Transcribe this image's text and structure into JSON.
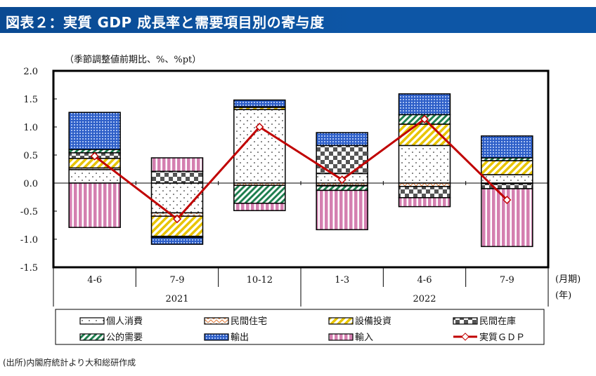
{
  "header": {
    "title": "図表２：実質 GDP 成長率と需要項目別の寄与度"
  },
  "source": "(出所)内閣府統計より大和総研作成",
  "colors": {
    "gdp": "#c00000",
    "consumption": "#ffffff",
    "housing": "#e07b39",
    "investment": "#e8c400",
    "inventory": "#555555",
    "public": "#1f7f4f",
    "exports": "#2e5fc8",
    "imports": "#d47fb0"
  },
  "chart_data": {
    "type": "bar",
    "title": "図表２：実質 GDP 成長率と需要項目別の寄与度",
    "unit_label": "（季節調整値前期比、%、%pt）",
    "x_unit_label": "(月期)",
    "year_unit_label": "(年)",
    "categories": [
      "4-6",
      "7-9",
      "10-12",
      "1-3",
      "4-6",
      "7-9"
    ],
    "years": [
      {
        "label": "2021",
        "span": 3
      },
      {
        "label": "2022",
        "span": 3
      }
    ],
    "ylim": [
      -1.5,
      2.0
    ],
    "yticks": [
      "2.0",
      "1.5",
      "1.0",
      "0.5",
      "0.0",
      "-0.5",
      "-1.0",
      "-1.5"
    ],
    "series": [
      {
        "name": "個人消費",
        "key": "consumption",
        "values": [
          0.24,
          -0.53,
          1.31,
          0.17,
          0.67,
          0.15
        ]
      },
      {
        "name": "民間住宅",
        "key": "housing",
        "values": [
          0.03,
          -0.06,
          -0.04,
          -0.04,
          -0.06,
          -0.01
        ]
      },
      {
        "name": "設備投資",
        "key": "investment",
        "values": [
          0.17,
          -0.36,
          0.04,
          -0.01,
          0.38,
          0.25
        ]
      },
      {
        "name": "民間在庫",
        "key": "inventory",
        "values": [
          0.1,
          0.21,
          0.01,
          0.5,
          -0.2,
          -0.09
        ]
      },
      {
        "name": "公的需要",
        "key": "public",
        "values": [
          0.06,
          -0.02,
          -0.32,
          -0.08,
          0.17,
          0.05
        ]
      },
      {
        "name": "輸出",
        "key": "exports",
        "values": [
          0.66,
          -0.12,
          0.12,
          0.23,
          0.37,
          0.39
        ]
      },
      {
        "name": "輸入",
        "key": "imports",
        "values": [
          -0.79,
          0.24,
          -0.13,
          -0.7,
          -0.16,
          -1.03
        ]
      }
    ],
    "line": {
      "name": "実質ＧＤＰ",
      "values": [
        0.48,
        -0.64,
        1.0,
        0.06,
        1.14,
        -0.3
      ]
    },
    "legend_position": "bottom"
  }
}
